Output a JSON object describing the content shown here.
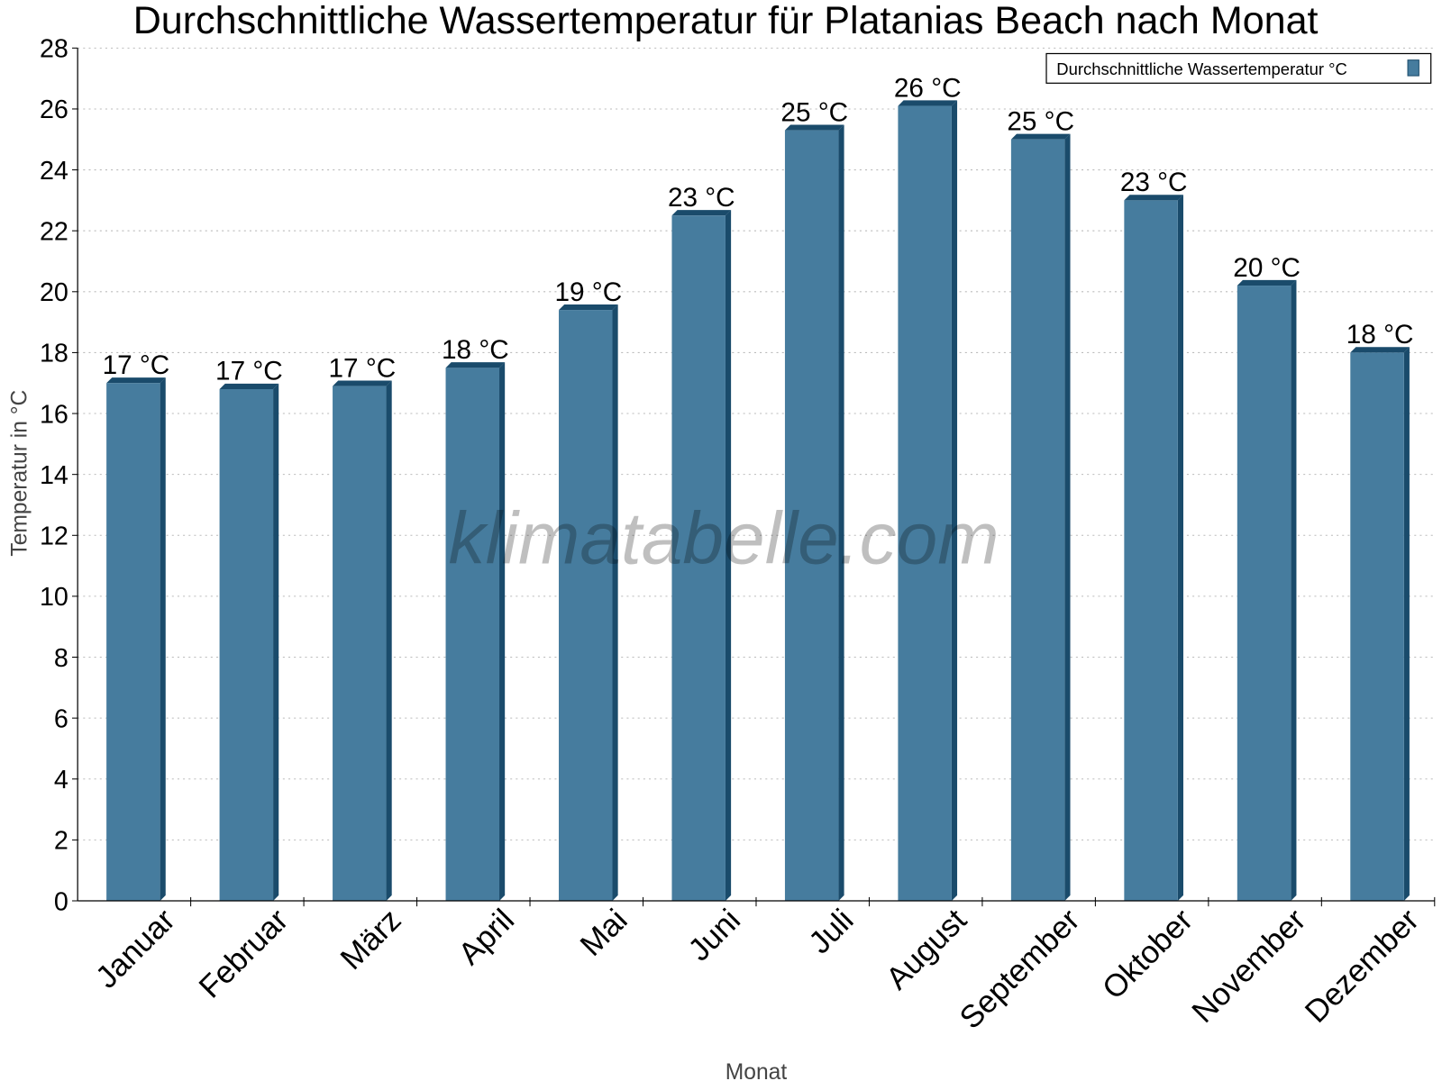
{
  "chart_data": {
    "type": "bar",
    "title": "Durchschnittliche Wassertemperatur für Platanias Beach nach Monat",
    "xlabel": "Monat",
    "ylabel": "Temperatur in °C",
    "ylim": [
      0,
      28
    ],
    "yticks": [
      0,
      2,
      4,
      6,
      8,
      10,
      12,
      14,
      16,
      18,
      20,
      22,
      24,
      26,
      28
    ],
    "grid": true,
    "legend_placement": "top-right",
    "categories": [
      "Januar",
      "Februar",
      "März",
      "April",
      "Mai",
      "Juni",
      "Juli",
      "August",
      "September",
      "Oktober",
      "November",
      "Dezember"
    ],
    "series": [
      {
        "name": "Durchschnittliche Wassertemperatur °C",
        "color": "#467c9e",
        "side_color": "#1a4b6b",
        "values": [
          17.0,
          16.8,
          16.9,
          17.5,
          19.4,
          22.5,
          25.3,
          26.1,
          25.0,
          23.0,
          20.2,
          18.0
        ],
        "labels": [
          "17 °C",
          "17 °C",
          "17 °C",
          "18 °C",
          "19 °C",
          "23 °C",
          "25 °C",
          "26 °C",
          "25 °C",
          "23 °C",
          "20 °C",
          "18 °C"
        ]
      }
    ],
    "watermark": "klimatabelle.com"
  }
}
